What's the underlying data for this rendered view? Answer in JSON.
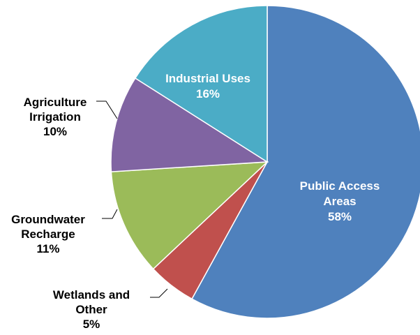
{
  "chart_data": {
    "type": "pie",
    "title": "",
    "start_angle_deg": 0,
    "direction": "clockwise",
    "slices": [
      {
        "label_lines": [
          "Public Access",
          "Areas",
          "58%"
        ],
        "name": "Public Access Areas",
        "value": 58,
        "color": "#4F81BD",
        "label_position": "inside"
      },
      {
        "label_lines": [
          "Wetlands and",
          "Other",
          "5%"
        ],
        "name": "Wetlands and Other",
        "value": 5,
        "color": "#C0504D",
        "label_position": "outside"
      },
      {
        "label_lines": [
          "Groundwater",
          "Recharge",
          "11%"
        ],
        "name": "Groundwater Recharge",
        "value": 11,
        "color": "#9BBB59",
        "label_position": "outside"
      },
      {
        "label_lines": [
          "Agriculture",
          "Irrigation",
          "10%"
        ],
        "name": "Agriculture Irrigation",
        "value": 10,
        "color": "#8064A2",
        "label_position": "outside"
      },
      {
        "label_lines": [
          "Industrial Uses",
          "16%"
        ],
        "name": "Industrial Uses",
        "value": 16,
        "color": "#4BACC6",
        "label_position": "inside"
      }
    ]
  }
}
